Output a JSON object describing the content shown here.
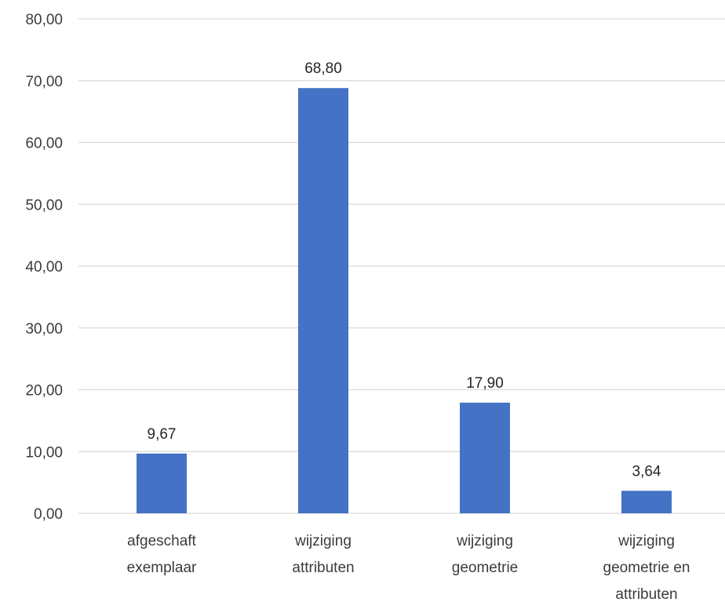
{
  "chart_data": {
    "type": "bar",
    "categories": [
      [
        "afgeschaft",
        "exemplaar"
      ],
      [
        "wijziging",
        "attributen"
      ],
      [
        "wijziging",
        "geometrie"
      ],
      [
        "wijziging",
        "geometrie en",
        "attributen"
      ]
    ],
    "values": [
      9.67,
      68.8,
      17.9,
      3.64
    ],
    "data_labels": [
      "9,67",
      "68,80",
      "17,90",
      "3,64"
    ],
    "y_ticks": [
      0,
      10,
      20,
      30,
      40,
      50,
      60,
      70,
      80
    ],
    "y_tick_labels": [
      "0,00",
      "10,00",
      "20,00",
      "30,00",
      "40,00",
      "50,00",
      "60,00",
      "70,00",
      "80,00"
    ],
    "ylim": [
      0,
      80
    ],
    "title": "",
    "xlabel": "",
    "ylabel": "",
    "grid": true,
    "legend": "none",
    "bar_color": "#4472C4"
  }
}
